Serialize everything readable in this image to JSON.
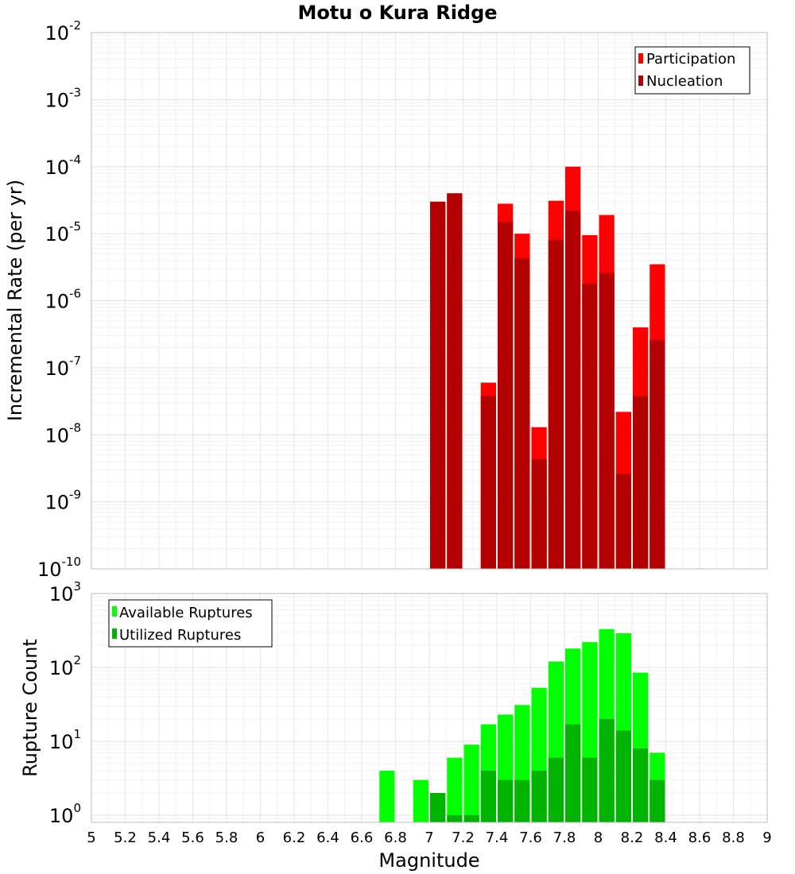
{
  "chart_data": [
    {
      "type": "bar",
      "title": "Motu o Kura Ridge",
      "ylabel": "Incremental Rate (per yr)",
      "xlabel": "",
      "x_range": [
        5,
        9
      ],
      "y_scale": "log",
      "ylim": [
        1e-10,
        0.01
      ],
      "y_tick_exponents": [
        -2,
        -3,
        -4,
        -5,
        -6,
        -7,
        -8,
        -9,
        -10
      ],
      "grid": true,
      "legend_position": "top-right",
      "bin_width": 0.1,
      "x": [
        7.05,
        7.15,
        7.35,
        7.45,
        7.55,
        7.65,
        7.75,
        7.85,
        7.95,
        8.05,
        8.15,
        8.25,
        8.35
      ],
      "series": [
        {
          "name": "Participation",
          "color": "#ff0000",
          "values": [
            3e-05,
            4e-05,
            6e-08,
            2.8e-05,
            1e-05,
            1.3e-08,
            3.1e-05,
            0.0001,
            9.5e-06,
            1.9e-05,
            2.2e-08,
            4e-07,
            3.5e-06
          ]
        },
        {
          "name": "Nucleation",
          "color": "#b30000",
          "values": [
            3e-05,
            4e-05,
            3.8e-08,
            1.5e-05,
            4.3e-06,
            4.3e-09,
            8.1e-06,
            2.2e-05,
            1.8e-06,
            2.6e-06,
            2.6e-09,
            3.8e-08,
            2.6e-07
          ]
        }
      ]
    },
    {
      "type": "bar",
      "title": "",
      "ylabel": "Rupture Count",
      "xlabel": "Magnitude",
      "x_range": [
        5,
        9
      ],
      "x_ticks": [
        "5",
        "5.2",
        "5.4",
        "5.6",
        "5.8",
        "6",
        "6.2",
        "6.4",
        "6.6",
        "6.8",
        "7",
        "7.2",
        "7.4",
        "7.6",
        "7.8",
        "8",
        "8.2",
        "8.4",
        "8.6",
        "8.8",
        "9"
      ],
      "y_scale": "log",
      "ylim": [
        0.8,
        1000
      ],
      "y_tick_exponents": [
        3,
        2,
        1,
        0
      ],
      "grid": true,
      "legend_position": "top-left",
      "bin_width": 0.1,
      "x": [
        6.75,
        6.95,
        7.05,
        7.15,
        7.25,
        7.35,
        7.45,
        7.55,
        7.65,
        7.75,
        7.85,
        7.95,
        8.05,
        8.15,
        8.25,
        8.35
      ],
      "series": [
        {
          "name": "Available Ruptures",
          "color": "#00ff00",
          "values": [
            4,
            3,
            2,
            6,
            9,
            17,
            23,
            31,
            53,
            120,
            180,
            220,
            330,
            290,
            85,
            7
          ]
        },
        {
          "name": "Utilized Ruptures",
          "color": "#00b300",
          "values": [
            0,
            0,
            2,
            1,
            1,
            4,
            3,
            3,
            4,
            6,
            17,
            6,
            20,
            14,
            8,
            3
          ]
        }
      ]
    }
  ]
}
